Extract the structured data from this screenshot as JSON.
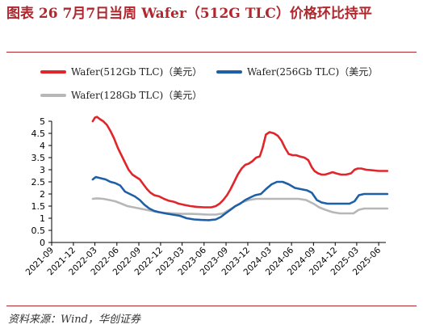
{
  "header": {
    "title": "图表 26   7月7日当周 Wafer（512G TLC）价格环比持平"
  },
  "footer": {
    "source": "资料来源：Wind，华创证券"
  },
  "colors": {
    "title": "#b0272d",
    "series_512": "#e0262b",
    "series_256": "#1f5fa8",
    "series_128": "#b7b7b7"
  },
  "chart_data": {
    "type": "line",
    "title": "",
    "xlabel": "",
    "ylabel": "",
    "ylim": [
      0,
      5
    ],
    "yticks": [
      "0",
      "0.5",
      "1",
      "1.5",
      "2",
      "2.5",
      "3",
      "3.5",
      "4",
      "4.5",
      "5"
    ],
    "xlim": [
      "2021-09",
      "2025-07"
    ],
    "xticks": [
      "2021-09",
      "2021-12",
      "2022-03",
      "2022-06",
      "2022-09",
      "2022-12",
      "2023-03",
      "2023-06",
      "2023-09",
      "2023-12",
      "2024-03",
      "2024-06",
      "2024-09",
      "2024-12",
      "2025-03",
      "2025-06"
    ],
    "grid": false,
    "legend": "top",
    "series": [
      {
        "name": "Wafer(512Gb TLC)（美元）",
        "color": "#e0262b",
        "data": [
          [
            "2022-02-20",
            5.0
          ],
          [
            "2022-03-01",
            5.15
          ],
          [
            "2022-03-10",
            5.18
          ],
          [
            "2022-03-20",
            5.1
          ],
          [
            "2022-04-05",
            5.0
          ],
          [
            "2022-04-20",
            4.85
          ],
          [
            "2022-05-05",
            4.6
          ],
          [
            "2022-05-20",
            4.3
          ],
          [
            "2022-06-05",
            3.9
          ],
          [
            "2022-06-20",
            3.6
          ],
          [
            "2022-07-05",
            3.3
          ],
          [
            "2022-07-20",
            3.0
          ],
          [
            "2022-08-05",
            2.8
          ],
          [
            "2022-08-20",
            2.7
          ],
          [
            "2022-09-05",
            2.6
          ],
          [
            "2022-09-20",
            2.4
          ],
          [
            "2022-10-05",
            2.2
          ],
          [
            "2022-10-20",
            2.05
          ],
          [
            "2022-11-05",
            1.95
          ],
          [
            "2022-11-25",
            1.9
          ],
          [
            "2022-12-15",
            1.8
          ],
          [
            "2023-01-05",
            1.72
          ],
          [
            "2023-01-25",
            1.68
          ],
          [
            "2023-02-15",
            1.6
          ],
          [
            "2023-03-10",
            1.55
          ],
          [
            "2023-04-05",
            1.5
          ],
          [
            "2023-05-01",
            1.47
          ],
          [
            "2023-06-01",
            1.45
          ],
          [
            "2023-07-01",
            1.45
          ],
          [
            "2023-07-20",
            1.5
          ],
          [
            "2023-08-05",
            1.6
          ],
          [
            "2023-08-20",
            1.75
          ],
          [
            "2023-09-05",
            1.95
          ],
          [
            "2023-09-20",
            2.2
          ],
          [
            "2023-10-05",
            2.5
          ],
          [
            "2023-10-20",
            2.8
          ],
          [
            "2023-11-05",
            3.05
          ],
          [
            "2023-11-20",
            3.2
          ],
          [
            "2023-12-05",
            3.25
          ],
          [
            "2023-12-20",
            3.35
          ],
          [
            "2024-01-05",
            3.5
          ],
          [
            "2024-01-20",
            3.55
          ],
          [
            "2024-02-01",
            3.9
          ],
          [
            "2024-02-15",
            4.45
          ],
          [
            "2024-03-01",
            4.55
          ],
          [
            "2024-03-20",
            4.5
          ],
          [
            "2024-04-05",
            4.4
          ],
          [
            "2024-04-20",
            4.2
          ],
          [
            "2024-05-05",
            3.9
          ],
          [
            "2024-05-20",
            3.65
          ],
          [
            "2024-06-05",
            3.6
          ],
          [
            "2024-06-20",
            3.6
          ],
          [
            "2024-07-05",
            3.55
          ],
          [
            "2024-07-25",
            3.5
          ],
          [
            "2024-08-10",
            3.4
          ],
          [
            "2024-08-25",
            3.1
          ],
          [
            "2024-09-05",
            2.95
          ],
          [
            "2024-09-20",
            2.85
          ],
          [
            "2024-10-05",
            2.8
          ],
          [
            "2024-10-20",
            2.8
          ],
          [
            "2024-11-05",
            2.85
          ],
          [
            "2024-11-20",
            2.9
          ],
          [
            "2024-12-05",
            2.85
          ],
          [
            "2024-12-25",
            2.8
          ],
          [
            "2025-01-15",
            2.8
          ],
          [
            "2025-02-05",
            2.85
          ],
          [
            "2025-02-20",
            3.0
          ],
          [
            "2025-03-05",
            3.05
          ],
          [
            "2025-03-20",
            3.05
          ],
          [
            "2025-04-10",
            3.0
          ],
          [
            "2025-05-01",
            2.98
          ],
          [
            "2025-06-01",
            2.95
          ],
          [
            "2025-07-07",
            2.95
          ]
        ]
      },
      {
        "name": "Wafer(256Gb TLC)（美元）",
        "color": "#1f5fa8",
        "data": [
          [
            "2022-02-20",
            2.6
          ],
          [
            "2022-03-05",
            2.7
          ],
          [
            "2022-03-25",
            2.65
          ],
          [
            "2022-04-15",
            2.6
          ],
          [
            "2022-05-05",
            2.5
          ],
          [
            "2022-05-25",
            2.45
          ],
          [
            "2022-06-15",
            2.35
          ],
          [
            "2022-07-05",
            2.1
          ],
          [
            "2022-07-25",
            2.0
          ],
          [
            "2022-08-15",
            1.9
          ],
          [
            "2022-09-05",
            1.75
          ],
          [
            "2022-09-25",
            1.55
          ],
          [
            "2022-10-15",
            1.4
          ],
          [
            "2022-11-05",
            1.3
          ],
          [
            "2022-11-25",
            1.25
          ],
          [
            "2022-12-20",
            1.2
          ],
          [
            "2023-01-20",
            1.15
          ],
          [
            "2023-02-20",
            1.1
          ],
          [
            "2023-03-20",
            1.0
          ],
          [
            "2023-04-20",
            0.95
          ],
          [
            "2023-05-20",
            0.93
          ],
          [
            "2023-06-20",
            0.92
          ],
          [
            "2023-07-20",
            0.95
          ],
          [
            "2023-08-10",
            1.05
          ],
          [
            "2023-08-30",
            1.2
          ],
          [
            "2023-09-20",
            1.35
          ],
          [
            "2023-10-10",
            1.5
          ],
          [
            "2023-10-30",
            1.6
          ],
          [
            "2023-11-20",
            1.75
          ],
          [
            "2023-12-10",
            1.85
          ],
          [
            "2024-01-01",
            1.95
          ],
          [
            "2024-01-25",
            2.0
          ],
          [
            "2024-02-15",
            2.2
          ],
          [
            "2024-03-10",
            2.4
          ],
          [
            "2024-04-01",
            2.5
          ],
          [
            "2024-04-25",
            2.5
          ],
          [
            "2024-05-20",
            2.4
          ],
          [
            "2024-06-15",
            2.25
          ],
          [
            "2024-07-10",
            2.2
          ],
          [
            "2024-08-05",
            2.15
          ],
          [
            "2024-08-25",
            2.05
          ],
          [
            "2024-09-15",
            1.75
          ],
          [
            "2024-10-05",
            1.65
          ],
          [
            "2024-10-30",
            1.6
          ],
          [
            "2024-11-30",
            1.6
          ],
          [
            "2024-12-30",
            1.6
          ],
          [
            "2025-01-30",
            1.6
          ],
          [
            "2025-02-20",
            1.7
          ],
          [
            "2025-03-10",
            1.95
          ],
          [
            "2025-04-01",
            2.0
          ],
          [
            "2025-05-01",
            2.0
          ],
          [
            "2025-06-01",
            2.0
          ],
          [
            "2025-07-07",
            2.0
          ]
        ]
      },
      {
        "name": "Wafer(128Gb TLC)（美元）",
        "color": "#b7b7b7",
        "data": [
          [
            "2022-02-20",
            1.8
          ],
          [
            "2022-03-10",
            1.82
          ],
          [
            "2022-04-05",
            1.8
          ],
          [
            "2022-05-01",
            1.75
          ],
          [
            "2022-05-25",
            1.7
          ],
          [
            "2022-06-20",
            1.6
          ],
          [
            "2022-07-15",
            1.5
          ],
          [
            "2022-08-10",
            1.45
          ],
          [
            "2022-09-05",
            1.4
          ],
          [
            "2022-09-30",
            1.35
          ],
          [
            "2022-10-25",
            1.3
          ],
          [
            "2022-11-20",
            1.25
          ],
          [
            "2022-12-20",
            1.22
          ],
          [
            "2023-01-25",
            1.2
          ],
          [
            "2023-03-01",
            1.18
          ],
          [
            "2023-04-05",
            1.18
          ],
          [
            "2023-05-10",
            1.17
          ],
          [
            "2023-06-15",
            1.15
          ],
          [
            "2023-07-20",
            1.15
          ],
          [
            "2023-08-20",
            1.2
          ],
          [
            "2023-09-15",
            1.35
          ],
          [
            "2023-10-10",
            1.5
          ],
          [
            "2023-11-05",
            1.65
          ],
          [
            "2023-12-05",
            1.75
          ],
          [
            "2024-01-05",
            1.8
          ],
          [
            "2024-02-10",
            1.8
          ],
          [
            "2024-03-15",
            1.8
          ],
          [
            "2024-04-20",
            1.8
          ],
          [
            "2024-05-25",
            1.8
          ],
          [
            "2024-06-30",
            1.8
          ],
          [
            "2024-08-01",
            1.75
          ],
          [
            "2024-09-01",
            1.6
          ],
          [
            "2024-09-25",
            1.45
          ],
          [
            "2024-10-20",
            1.35
          ],
          [
            "2024-11-20",
            1.25
          ],
          [
            "2024-12-20",
            1.2
          ],
          [
            "2025-01-20",
            1.2
          ],
          [
            "2025-02-15",
            1.2
          ],
          [
            "2025-03-10",
            1.35
          ],
          [
            "2025-04-01",
            1.4
          ],
          [
            "2025-05-01",
            1.4
          ],
          [
            "2025-06-01",
            1.4
          ],
          [
            "2025-07-07",
            1.4
          ]
        ]
      }
    ]
  }
}
